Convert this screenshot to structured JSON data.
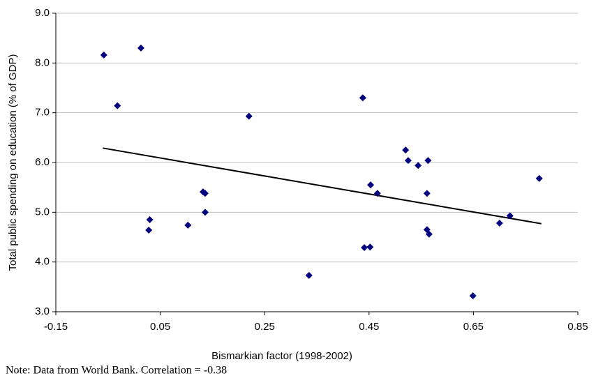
{
  "chart_data": {
    "type": "scatter",
    "x_label": "Bismarkian factor (1998-2002)",
    "y_label": "Total public spending on education (% of GDP)",
    "note": "Note: Data from World Bank. Correlation = -0.38",
    "x": [
      -0.058,
      0.013,
      -0.032,
      0.22,
      0.438,
      0.028,
      0.03,
      0.103,
      0.132,
      0.136,
      0.136,
      0.335,
      0.441,
      0.452,
      0.453,
      0.466,
      0.52,
      0.525,
      0.544,
      0.563,
      0.561,
      0.561,
      0.565,
      0.649,
      0.7,
      0.72,
      0.776
    ],
    "values": [
      8.16,
      8.3,
      7.14,
      6.93,
      7.3,
      4.64,
      4.85,
      4.74,
      5.41,
      5.38,
      5.0,
      3.73,
      4.29,
      4.3,
      5.55,
      5.38,
      6.25,
      6.04,
      5.94,
      6.04,
      5.38,
      4.65,
      4.56,
      3.32,
      4.78,
      4.93,
      5.68
    ],
    "color": "#00007f",
    "trendline": {
      "x": [
        -0.06,
        0.78
      ],
      "y": [
        6.29,
        4.77
      ],
      "color": "#000000"
    },
    "xlim": [
      -0.15,
      0.85
    ],
    "xticks": [
      -0.15,
      0.05,
      0.25,
      0.45,
      0.65,
      0.85
    ],
    "ylim": [
      3,
      9
    ],
    "yticks": [
      {
        "value": 3,
        "label": "3.0"
      },
      {
        "value": 4,
        "label": "4.0"
      },
      {
        "value": 5,
        "label": "5.0"
      },
      {
        "value": 6,
        "label": "6.0"
      },
      {
        "value": 7,
        "label": "7.0"
      },
      {
        "value": 8,
        "label": "8.0"
      },
      {
        "value": 9,
        "label": "9.0"
      }
    ],
    "grid": true
  }
}
